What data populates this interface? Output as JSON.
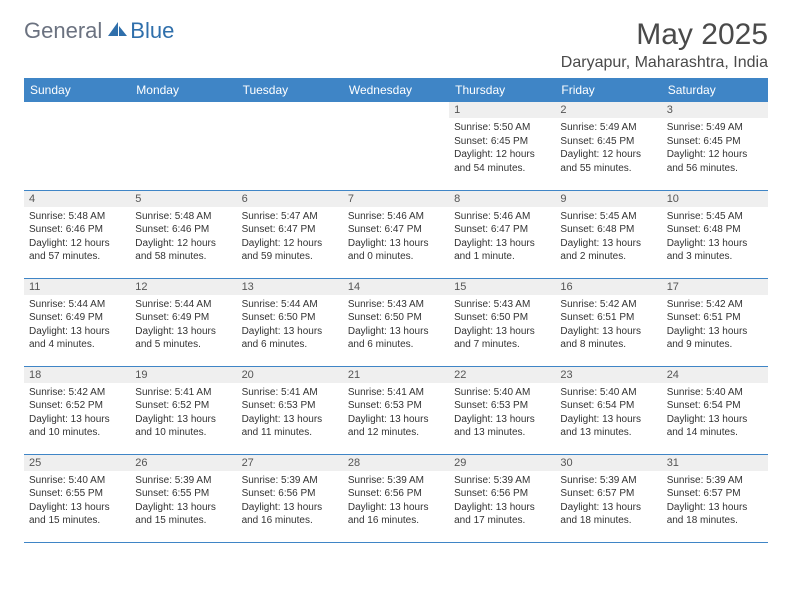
{
  "brand": {
    "part1": "General",
    "part2": "Blue"
  },
  "title": "May 2025",
  "location": "Daryapur, Maharashtra, India",
  "colors": {
    "header_bg": "#3f85c6",
    "header_text": "#ffffff",
    "daynum_bg": "#efefef",
    "border": "#3f85c6",
    "logo_gray": "#6b7280",
    "logo_blue": "#2f6fab"
  },
  "weekdays": [
    "Sunday",
    "Monday",
    "Tuesday",
    "Wednesday",
    "Thursday",
    "Friday",
    "Saturday"
  ],
  "weeks": [
    [
      {
        "empty": true
      },
      {
        "empty": true
      },
      {
        "empty": true
      },
      {
        "empty": true
      },
      {
        "day": "1",
        "sunrise": "Sunrise: 5:50 AM",
        "sunset": "Sunset: 6:45 PM",
        "daylight": "Daylight: 12 hours and 54 minutes."
      },
      {
        "day": "2",
        "sunrise": "Sunrise: 5:49 AM",
        "sunset": "Sunset: 6:45 PM",
        "daylight": "Daylight: 12 hours and 55 minutes."
      },
      {
        "day": "3",
        "sunrise": "Sunrise: 5:49 AM",
        "sunset": "Sunset: 6:45 PM",
        "daylight": "Daylight: 12 hours and 56 minutes."
      }
    ],
    [
      {
        "day": "4",
        "sunrise": "Sunrise: 5:48 AM",
        "sunset": "Sunset: 6:46 PM",
        "daylight": "Daylight: 12 hours and 57 minutes."
      },
      {
        "day": "5",
        "sunrise": "Sunrise: 5:48 AM",
        "sunset": "Sunset: 6:46 PM",
        "daylight": "Daylight: 12 hours and 58 minutes."
      },
      {
        "day": "6",
        "sunrise": "Sunrise: 5:47 AM",
        "sunset": "Sunset: 6:47 PM",
        "daylight": "Daylight: 12 hours and 59 minutes."
      },
      {
        "day": "7",
        "sunrise": "Sunrise: 5:46 AM",
        "sunset": "Sunset: 6:47 PM",
        "daylight": "Daylight: 13 hours and 0 minutes."
      },
      {
        "day": "8",
        "sunrise": "Sunrise: 5:46 AM",
        "sunset": "Sunset: 6:47 PM",
        "daylight": "Daylight: 13 hours and 1 minute."
      },
      {
        "day": "9",
        "sunrise": "Sunrise: 5:45 AM",
        "sunset": "Sunset: 6:48 PM",
        "daylight": "Daylight: 13 hours and 2 minutes."
      },
      {
        "day": "10",
        "sunrise": "Sunrise: 5:45 AM",
        "sunset": "Sunset: 6:48 PM",
        "daylight": "Daylight: 13 hours and 3 minutes."
      }
    ],
    [
      {
        "day": "11",
        "sunrise": "Sunrise: 5:44 AM",
        "sunset": "Sunset: 6:49 PM",
        "daylight": "Daylight: 13 hours and 4 minutes."
      },
      {
        "day": "12",
        "sunrise": "Sunrise: 5:44 AM",
        "sunset": "Sunset: 6:49 PM",
        "daylight": "Daylight: 13 hours and 5 minutes."
      },
      {
        "day": "13",
        "sunrise": "Sunrise: 5:44 AM",
        "sunset": "Sunset: 6:50 PM",
        "daylight": "Daylight: 13 hours and 6 minutes."
      },
      {
        "day": "14",
        "sunrise": "Sunrise: 5:43 AM",
        "sunset": "Sunset: 6:50 PM",
        "daylight": "Daylight: 13 hours and 6 minutes."
      },
      {
        "day": "15",
        "sunrise": "Sunrise: 5:43 AM",
        "sunset": "Sunset: 6:50 PM",
        "daylight": "Daylight: 13 hours and 7 minutes."
      },
      {
        "day": "16",
        "sunrise": "Sunrise: 5:42 AM",
        "sunset": "Sunset: 6:51 PM",
        "daylight": "Daylight: 13 hours and 8 minutes."
      },
      {
        "day": "17",
        "sunrise": "Sunrise: 5:42 AM",
        "sunset": "Sunset: 6:51 PM",
        "daylight": "Daylight: 13 hours and 9 minutes."
      }
    ],
    [
      {
        "day": "18",
        "sunrise": "Sunrise: 5:42 AM",
        "sunset": "Sunset: 6:52 PM",
        "daylight": "Daylight: 13 hours and 10 minutes."
      },
      {
        "day": "19",
        "sunrise": "Sunrise: 5:41 AM",
        "sunset": "Sunset: 6:52 PM",
        "daylight": "Daylight: 13 hours and 10 minutes."
      },
      {
        "day": "20",
        "sunrise": "Sunrise: 5:41 AM",
        "sunset": "Sunset: 6:53 PM",
        "daylight": "Daylight: 13 hours and 11 minutes."
      },
      {
        "day": "21",
        "sunrise": "Sunrise: 5:41 AM",
        "sunset": "Sunset: 6:53 PM",
        "daylight": "Daylight: 13 hours and 12 minutes."
      },
      {
        "day": "22",
        "sunrise": "Sunrise: 5:40 AM",
        "sunset": "Sunset: 6:53 PM",
        "daylight": "Daylight: 13 hours and 13 minutes."
      },
      {
        "day": "23",
        "sunrise": "Sunrise: 5:40 AM",
        "sunset": "Sunset: 6:54 PM",
        "daylight": "Daylight: 13 hours and 13 minutes."
      },
      {
        "day": "24",
        "sunrise": "Sunrise: 5:40 AM",
        "sunset": "Sunset: 6:54 PM",
        "daylight": "Daylight: 13 hours and 14 minutes."
      }
    ],
    [
      {
        "day": "25",
        "sunrise": "Sunrise: 5:40 AM",
        "sunset": "Sunset: 6:55 PM",
        "daylight": "Daylight: 13 hours and 15 minutes."
      },
      {
        "day": "26",
        "sunrise": "Sunrise: 5:39 AM",
        "sunset": "Sunset: 6:55 PM",
        "daylight": "Daylight: 13 hours and 15 minutes."
      },
      {
        "day": "27",
        "sunrise": "Sunrise: 5:39 AM",
        "sunset": "Sunset: 6:56 PM",
        "daylight": "Daylight: 13 hours and 16 minutes."
      },
      {
        "day": "28",
        "sunrise": "Sunrise: 5:39 AM",
        "sunset": "Sunset: 6:56 PM",
        "daylight": "Daylight: 13 hours and 16 minutes."
      },
      {
        "day": "29",
        "sunrise": "Sunrise: 5:39 AM",
        "sunset": "Sunset: 6:56 PM",
        "daylight": "Daylight: 13 hours and 17 minutes."
      },
      {
        "day": "30",
        "sunrise": "Sunrise: 5:39 AM",
        "sunset": "Sunset: 6:57 PM",
        "daylight": "Daylight: 13 hours and 18 minutes."
      },
      {
        "day": "31",
        "sunrise": "Sunrise: 5:39 AM",
        "sunset": "Sunset: 6:57 PM",
        "daylight": "Daylight: 13 hours and 18 minutes."
      }
    ]
  ]
}
